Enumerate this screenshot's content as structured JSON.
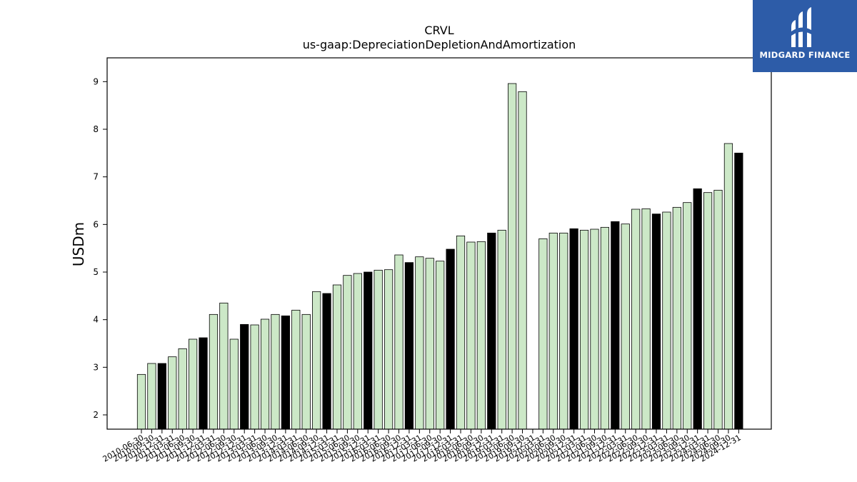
{
  "chart_data": {
    "type": "bar",
    "title": "CRVL",
    "subtitle": "us-gaap:DepreciationDepletionAndAmortization",
    "xlabel": "",
    "ylabel": "USDm",
    "ylim": [
      1.7,
      9.5
    ],
    "yticks": [
      2,
      3,
      4,
      5,
      6,
      7,
      8,
      9
    ],
    "grid": false,
    "colors": {
      "quarter": "#cce8c7",
      "annual": "#000000",
      "edge": "#000000"
    },
    "categories": [
      "2010-06-30",
      "2010-09-30",
      "2010-12-31",
      "2011-03-31",
      "2011-06-30",
      "2011-09-30",
      "2011-12-31",
      "2012-03-31",
      "2012-06-30",
      "2012-09-30",
      "2012-12-31",
      "2013-03-31",
      "2013-06-30",
      "2013-09-30",
      "2013-12-31",
      "2014-03-31",
      "2014-06-30",
      "2014-09-30",
      "2014-12-31",
      "2015-03-31",
      "2015-06-30",
      "2015-09-30",
      "2015-12-31",
      "2016-03-31",
      "2016-06-30",
      "2016-09-30",
      "2016-12-31",
      "2017-03-31",
      "2017-06-30",
      "2017-09-30",
      "2017-12-31",
      "2018-03-31",
      "2018-06-30",
      "2018-09-30",
      "2018-12-31",
      "2019-03-31",
      "2019-06-30",
      "2019-09-30",
      "2019-12-31",
      "2020-03-31",
      "2020-06-30",
      "2020-09-30",
      "2020-12-31",
      "2021-03-31",
      "2021-06-30",
      "2021-09-30",
      "2021-12-31",
      "2022-03-31",
      "2022-06-30",
      "2022-09-30",
      "2022-12-31",
      "2023-03-31",
      "2023-06-30",
      "2023-09-30",
      "2023-12-31",
      "2024-03-31",
      "2024-06-30",
      "2024-09-30",
      "2024-12-31"
    ],
    "values": [
      2.85,
      3.08,
      3.08,
      3.22,
      3.39,
      3.59,
      3.62,
      4.11,
      4.35,
      3.59,
      3.9,
      3.89,
      4.01,
      4.11,
      4.08,
      4.2,
      4.11,
      4.59,
      4.55,
      4.73,
      4.93,
      4.97,
      5.0,
      5.04,
      5.05,
      5.36,
      5.2,
      5.32,
      5.29,
      5.23,
      5.48,
      5.76,
      5.63,
      5.64,
      5.82,
      5.88,
      8.96,
      8.79,
      null,
      5.7,
      5.82,
      5.82,
      5.91,
      5.88,
      5.9,
      5.94,
      6.06,
      6.01,
      6.32,
      6.33,
      6.22,
      6.26,
      6.36,
      6.46,
      6.75,
      6.67,
      6.72,
      7.7,
      7.5
    ],
    "annual": [
      false,
      false,
      true,
      false,
      false,
      false,
      true,
      false,
      false,
      false,
      true,
      false,
      false,
      false,
      true,
      false,
      false,
      false,
      true,
      false,
      false,
      false,
      true,
      false,
      false,
      false,
      true,
      false,
      false,
      false,
      true,
      false,
      false,
      false,
      true,
      false,
      false,
      false,
      true,
      false,
      false,
      false,
      true,
      false,
      false,
      false,
      true,
      false,
      false,
      false,
      true,
      false,
      false,
      false,
      true,
      false,
      false,
      false,
      true
    ]
  },
  "logo": {
    "brand": "MIDGARD FINANCE"
  }
}
